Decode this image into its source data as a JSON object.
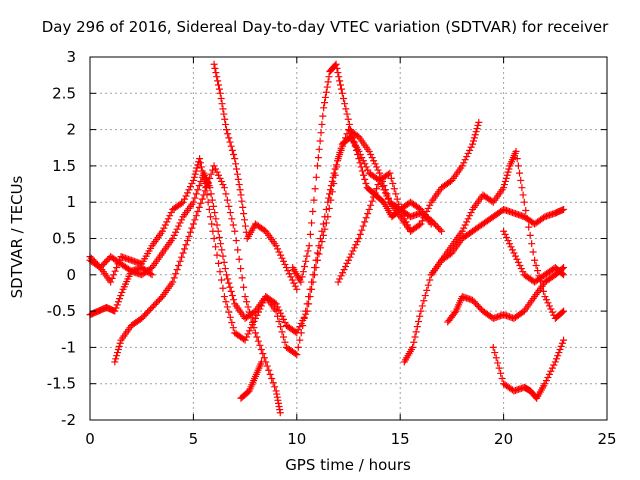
{
  "chart_data": {
    "type": "scatter",
    "title": "Day 296 of 2016, Sidereal Day-to-day VTEC variation (SDTVAR) for receiver",
    "xlabel": "GPS time / hours",
    "ylabel": "SDTVAR / TECUs",
    "xlim": [
      0,
      25
    ],
    "ylim": [
      -2,
      3
    ],
    "xticks": [
      "0",
      "5",
      "10",
      "15",
      "20",
      "25"
    ],
    "yticks": [
      "-2",
      "-1.5",
      "-1",
      "-0.5",
      "0",
      "0.5",
      "1",
      "1.5",
      "2",
      "2.5",
      "3"
    ],
    "grid": true,
    "marker": "+",
    "color": "#ff0000",
    "series": [
      {
        "x": [
          0,
          0.5,
          1,
          1.5,
          2,
          2.5,
          3,
          3.5,
          4,
          4.5,
          5,
          5.3,
          5.6,
          6,
          6.5,
          7,
          7.5,
          8,
          8.5,
          9,
          9.5,
          10,
          10.5,
          11,
          11.5,
          11.8,
          12.2,
          12.6,
          13,
          13.5,
          14,
          14.5,
          15,
          15.5,
          16,
          16.5,
          17,
          17.5,
          18,
          18.5,
          18.8
        ],
        "y": [
          0.2,
          0.1,
          -0.1,
          0.25,
          0.2,
          0.15,
          0.4,
          0.6,
          0.9,
          1.0,
          1.3,
          1.6,
          1.2,
          0.5,
          -0.3,
          -0.8,
          -0.9,
          -0.6,
          -0.3,
          -0.5,
          -1.0,
          -1.1,
          -0.4,
          0.3,
          1.0,
          1.4,
          1.8,
          1.9,
          1.7,
          1.4,
          1.3,
          1.0,
          0.8,
          0.6,
          0.7,
          1.0,
          1.2,
          1.3,
          1.5,
          1.8,
          2.1
        ]
      },
      {
        "x": [
          0,
          0.4,
          0.8,
          1.2,
          1.6,
          2,
          2.5,
          3,
          3.5,
          4,
          4.5,
          5,
          5.5,
          5.8,
          6.2,
          6.6,
          7,
          7.5,
          8,
          8.5,
          9,
          9.5,
          10,
          10.5,
          11,
          11.5,
          12,
          12.5,
          13,
          13.5,
          14,
          14.5,
          15,
          15.5,
          16,
          16.5,
          17
        ],
        "y": [
          -0.55,
          -0.5,
          -0.45,
          -0.5,
          -0.2,
          0.05,
          0.0,
          0.1,
          0.3,
          0.5,
          0.8,
          1.0,
          1.4,
          1.2,
          0.6,
          0.0,
          -0.4,
          -0.6,
          -0.5,
          -0.3,
          -0.4,
          -0.7,
          -0.8,
          -0.5,
          0.2,
          0.8,
          1.6,
          2.0,
          1.9,
          1.7,
          1.4,
          1.0,
          0.9,
          0.8,
          0.85,
          0.75,
          0.6
        ]
      },
      {
        "x": [
          1.2,
          1.5,
          2,
          2.5,
          3,
          3.5,
          4,
          4.5,
          5,
          5.5,
          6,
          6.5,
          7,
          7.5,
          8,
          8.5,
          9,
          9.2
        ],
        "y": [
          -1.2,
          -0.9,
          -0.7,
          -0.6,
          -0.45,
          -0.3,
          -0.1,
          0.3,
          0.7,
          1.1,
          1.5,
          1.2,
          0.6,
          -0.3,
          -0.8,
          -1.2,
          -1.6,
          -1.9
        ]
      },
      {
        "x": [
          0,
          0.5,
          1,
          1.5,
          2,
          2.5,
          3
        ],
        "y": [
          0.25,
          0.1,
          0.25,
          0.15,
          0.05,
          0.1,
          0.0
        ]
      },
      {
        "x": [
          6,
          6.3,
          6.6,
          7,
          7.3,
          7.6,
          8,
          8.5,
          9,
          9.5,
          10
        ],
        "y": [
          2.9,
          2.5,
          2.0,
          1.6,
          1.1,
          0.5,
          0.7,
          0.6,
          0.4,
          0.1,
          -0.2
        ]
      },
      {
        "x": [
          7.3,
          7.7,
          8,
          8.3
        ],
        "y": [
          -1.7,
          -1.6,
          -1.4,
          -1.2
        ]
      },
      {
        "x": [
          9.8,
          10.2,
          10.6,
          11,
          11.3,
          11.6,
          11.9,
          12.2,
          12.6,
          13,
          13.4,
          13.8,
          14.2,
          14.6,
          15,
          15.5,
          16,
          16.5
        ],
        "y": [
          0.1,
          -0.1,
          0.4,
          1.5,
          2.3,
          2.8,
          2.9,
          2.5,
          2.0,
          1.6,
          1.2,
          1.1,
          1.0,
          0.8,
          0.9,
          1.0,
          0.9,
          0.7
        ]
      },
      {
        "x": [
          12,
          12.5,
          13,
          13.5,
          14,
          14.5,
          15,
          15.5
        ],
        "y": [
          -0.1,
          0.2,
          0.5,
          0.9,
          1.3,
          1.4,
          0.9,
          0.6
        ]
      },
      {
        "x": [
          15.2,
          15.6,
          16,
          16.5,
          17,
          17.5,
          18,
          18.5,
          19,
          19.5,
          20,
          20.5,
          21,
          21.5,
          22,
          22.5,
          22.9
        ],
        "y": [
          -1.2,
          -1.0,
          -0.5,
          0.0,
          0.2,
          0.3,
          0.5,
          0.6,
          0.7,
          0.8,
          0.9,
          0.85,
          0.8,
          0.7,
          0.8,
          0.85,
          0.9
        ]
      },
      {
        "x": [
          17.3,
          17.7,
          18,
          18.5,
          19,
          19.5,
          20,
          20.5,
          21,
          21.5,
          22,
          22.5,
          22.9
        ],
        "y": [
          -0.65,
          -0.5,
          -0.3,
          -0.35,
          -0.5,
          -0.6,
          -0.55,
          -0.6,
          -0.5,
          -0.3,
          -0.1,
          0.0,
          0.1
        ]
      },
      {
        "x": [
          16.5,
          17,
          17.5,
          18,
          18.5,
          19,
          19.5,
          20,
          20.3,
          20.6,
          21,
          21.5,
          22,
          22.5,
          22.9
        ],
        "y": [
          0.0,
          0.2,
          0.4,
          0.6,
          0.9,
          1.1,
          1.0,
          1.2,
          1.5,
          1.7,
          1.0,
          0.2,
          -0.3,
          -0.6,
          -0.5
        ]
      },
      {
        "x": [
          19.5,
          20,
          20.5,
          21,
          21.3,
          21.6,
          22,
          22.5,
          22.9
        ],
        "y": [
          -1.0,
          -1.5,
          -1.6,
          -1.55,
          -1.6,
          -1.7,
          -1.5,
          -1.2,
          -0.9
        ]
      },
      {
        "x": [
          20,
          20.5,
          21,
          21.5,
          22,
          22.5,
          22.9
        ],
        "y": [
          0.6,
          0.3,
          0.0,
          -0.1,
          0.0,
          0.1,
          0.0
        ]
      }
    ]
  }
}
